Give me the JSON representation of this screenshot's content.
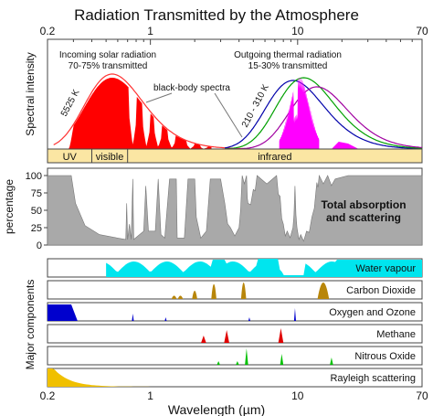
{
  "chart_data": {
    "type": "area",
    "title": "Radiation Transmitted by the Atmosphere",
    "xlabel": "Wavelength (µm)",
    "x_scale": "log",
    "xlim": [
      0.2,
      70
    ],
    "x_ticks": [
      "0.2",
      "1",
      "10",
      "70"
    ],
    "spectrum_panel": {
      "ylabel": "Spectral intensity",
      "incoming": {
        "label_line1": "Incoming solar radiation",
        "label_line2": "70-75% transmitted",
        "blackbody_label": "5525 K",
        "color": "#ff0000"
      },
      "outgoing": {
        "label_line1": "Outgoing thermal radiation",
        "label_line2": "15-30% transmitted",
        "blackbody_label": "210 - 310 K",
        "color": "#ff00ff"
      },
      "blackbody_note": "black-body spectra",
      "bands": [
        {
          "label": "UV",
          "from": 0.2,
          "to": 0.4
        },
        {
          "label": "visible",
          "from": 0.4,
          "to": 0.7
        },
        {
          "label": "infrared",
          "from": 0.7,
          "to": 70
        }
      ]
    },
    "absorption_panel": {
      "ylabel": "percentage",
      "y_ticks": [
        "0",
        "25",
        "50",
        "75",
        "100"
      ],
      "ylim": [
        0,
        100
      ],
      "label_line1": "Total absorption",
      "label_line2": "and scattering",
      "color": "#a9a9a9"
    },
    "components_ylabel": "Major components",
    "components": [
      {
        "name": "Water vapour",
        "color": "#00e5ee"
      },
      {
        "name": "Carbon Dioxide",
        "color": "#b8860b"
      },
      {
        "name": "Oxygen and Ozone",
        "color": "#0000cd"
      },
      {
        "name": "Methane",
        "color": "#e00000"
      },
      {
        "name": "Nitrous Oxide",
        "color": "#00c000"
      },
      {
        "name": "Rayleigh scattering",
        "color": "#f0c000"
      }
    ],
    "blackbody_curves": {
      "colors": [
        "#ff3333",
        "#0000aa",
        "#00a000",
        "#a000a0"
      ]
    }
  }
}
